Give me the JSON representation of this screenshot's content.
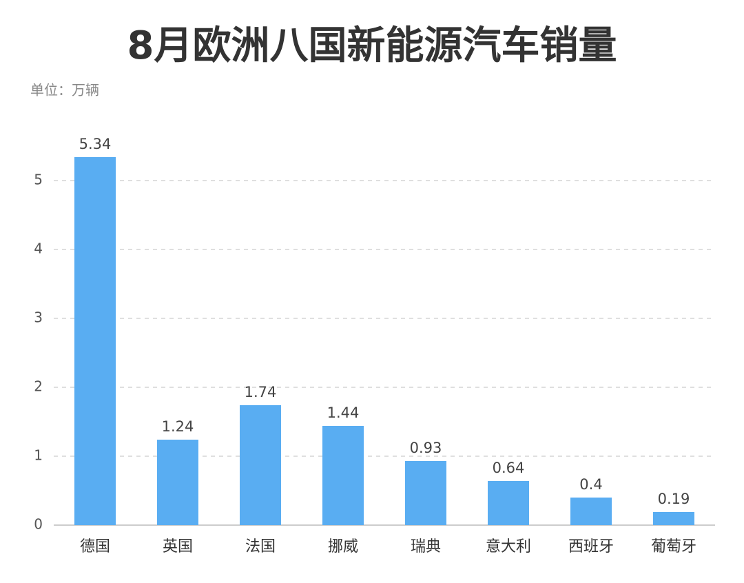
{
  "chart_data": {
    "type": "bar",
    "title": "8月欧洲八国新能源汽车销量",
    "subtitle": "单位：万辆",
    "categories": [
      "德国",
      "英国",
      "法国",
      "挪威",
      "瑞典",
      "意大利",
      "西班牙",
      "葡萄牙"
    ],
    "values": [
      5.34,
      1.24,
      1.74,
      1.44,
      0.93,
      0.64,
      0.4,
      0.19
    ],
    "color": "#59adf2",
    "ylim": [
      0,
      5.4
    ],
    "yticks": [
      0,
      1,
      2,
      3,
      4,
      5
    ],
    "grid": true
  }
}
